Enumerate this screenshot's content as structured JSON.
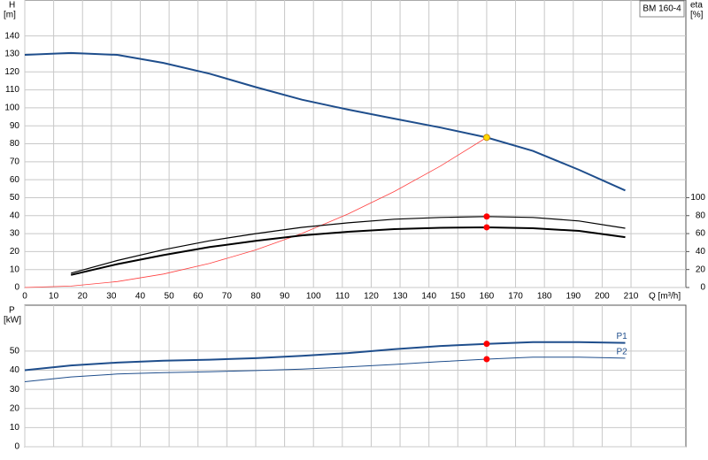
{
  "chart_data": [
    {
      "type": "line",
      "title": "BM 160-4",
      "xlabel": "Q [m³/h]",
      "ylabel": [
        "H",
        "[m]"
      ],
      "y2label": [
        "eta",
        "[%]"
      ],
      "xlim": [
        0,
        229
      ],
      "xticks": [
        0,
        10,
        20,
        30,
        40,
        50,
        60,
        70,
        80,
        90,
        100,
        110,
        120,
        130,
        140,
        150,
        160,
        170,
        180,
        190,
        200,
        210
      ],
      "ylim": [
        0,
        160
      ],
      "yticks": [
        0,
        10,
        20,
        30,
        40,
        50,
        60,
        70,
        80,
        90,
        100,
        110,
        120,
        130,
        140
      ],
      "y2lim": [
        0,
        320
      ],
      "y2ticks": [
        0,
        20,
        40,
        60,
        80,
        100
      ],
      "grid": true,
      "series": [
        {
          "color": "#1f4e8c",
          "x": [
            0,
            16,
            32,
            48,
            64,
            80,
            96,
            112,
            128,
            144,
            160,
            176,
            192,
            208
          ],
          "values": [
            129.5,
            130.5,
            129.5,
            125,
            119,
            111.5,
            104.5,
            99,
            94,
            89,
            83.5,
            76,
            65.5,
            54
          ]
        },
        {
          "color": "#ff4040",
          "x": [
            0,
            16,
            32,
            48,
            64,
            80,
            96,
            112,
            128,
            144,
            160
          ],
          "values": [
            0,
            0.8,
            3.3,
            7.5,
            13.4,
            20.9,
            30.1,
            40.9,
            53.4,
            67.6,
            83.5
          ]
        },
        {
          "color": "#000000",
          "axis": "y2",
          "x": [
            16,
            32,
            48,
            64,
            80,
            96,
            112,
            128,
            144,
            160,
            176,
            192,
            208
          ],
          "values": [
            16,
            30,
            42,
            52,
            60,
            67,
            72,
            76,
            78,
            79,
            78,
            74,
            66
          ]
        },
        {
          "color": "#000000",
          "axis": "y2",
          "x": [
            16,
            32,
            48,
            64,
            80,
            96,
            112,
            128,
            144,
            160,
            176,
            192,
            208
          ],
          "values": [
            14,
            26,
            36,
            45,
            52,
            58,
            62,
            65,
            66.5,
            67,
            66,
            63,
            56
          ]
        }
      ],
      "points": [
        {
          "x": 160,
          "y": 83.5,
          "color": "#ffd700"
        },
        {
          "x": 160,
          "y": 79,
          "axis": "y2",
          "color": "#ff0000"
        },
        {
          "x": 160,
          "y": 67,
          "axis": "y2",
          "color": "#ff0000"
        }
      ]
    },
    {
      "type": "line",
      "ylabel": [
        "P",
        "[kW]"
      ],
      "xlim": [
        0,
        229
      ],
      "ylim": [
        0,
        74
      ],
      "yticks": [
        0,
        10,
        20,
        30,
        40,
        50
      ],
      "grid": true,
      "series": [
        {
          "name": "P1",
          "color": "#1f4e8c",
          "x": [
            0,
            16,
            32,
            48,
            64,
            80,
            96,
            112,
            128,
            144,
            160,
            176,
            192,
            208
          ],
          "values": [
            40,
            42.5,
            44,
            45,
            45.5,
            46.3,
            47.5,
            49,
            51,
            52.7,
            53.8,
            54.7,
            54.7,
            54.3
          ]
        },
        {
          "name": "P2",
          "color": "#1f4e8c",
          "x": [
            0,
            16,
            32,
            48,
            64,
            80,
            96,
            112,
            128,
            144,
            160,
            176,
            192,
            208
          ],
          "values": [
            34,
            36.5,
            38,
            38.7,
            39.2,
            39.8,
            40.6,
            41.7,
            43,
            44.5,
            45.8,
            46.8,
            46.8,
            46.3
          ]
        }
      ],
      "points": [
        {
          "x": 160,
          "y": 53.8,
          "color": "#ff0000"
        },
        {
          "x": 160,
          "y": 45.8,
          "color": "#ff0000"
        }
      ]
    }
  ]
}
